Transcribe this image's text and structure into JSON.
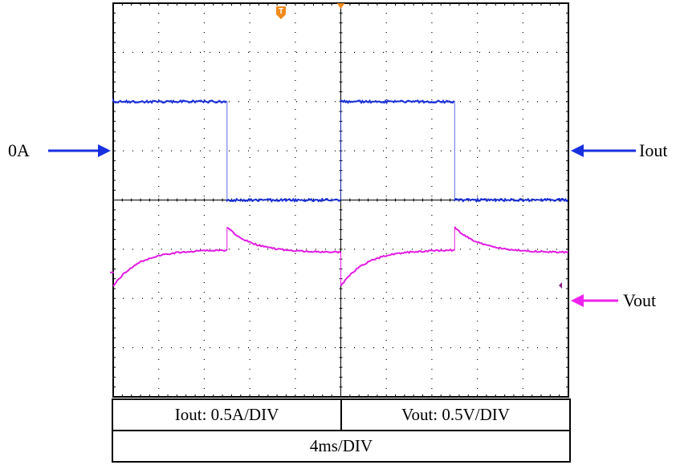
{
  "labels": {
    "zero_marker": "0A",
    "iout_marker": "Iout",
    "vout_marker": "Vout",
    "trigger_marker": "T"
  },
  "table": {
    "iout_scale": "Iout: 0.5A/DIV",
    "vout_scale": "Vout: 0.5V/DIV",
    "time_scale": "4ms/DIV"
  },
  "colors": {
    "iout": "#1a2fd6",
    "vout": "#e21be2",
    "arrow_blue": "#1830e0",
    "arrow_magenta": "#ee22ee",
    "trigger": "#f08a1c",
    "grid": "#000000"
  },
  "chart_data": {
    "type": "line",
    "x_unit": "div",
    "xlim": [
      0,
      10
    ],
    "ylim": [
      -4,
      4
    ],
    "grid": true,
    "series": [
      {
        "name": "Iout",
        "color": "#1a2fd6",
        "x": [
          0,
          2.5,
          2.5,
          5.0,
          5.0,
          7.5,
          7.5,
          10.0
        ],
        "y": [
          2.0,
          2.0,
          0.0,
          0.0,
          2.0,
          2.0,
          0.0,
          0.0
        ],
        "pattern": "square"
      },
      {
        "name": "Vout",
        "color": "#e21be2",
        "x": [
          0,
          2.5,
          2.5,
          5.0,
          5.0,
          7.5,
          7.5,
          10.0
        ],
        "y_start": [
          -1.75,
          -1.02,
          -0.55,
          -1.06,
          -1.75,
          -1.02,
          -0.55,
          -1.06
        ],
        "pattern": "exp-recovery"
      }
    ]
  }
}
